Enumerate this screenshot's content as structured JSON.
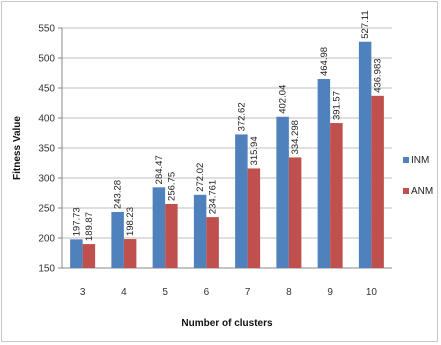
{
  "chart_data": {
    "type": "bar",
    "title": "",
    "xlabel": "Number of clusters",
    "ylabel": "Fitness Value",
    "categories": [
      "3",
      "4",
      "5",
      "6",
      "7",
      "8",
      "9",
      "10"
    ],
    "ylim": [
      150,
      550
    ],
    "yticks": [
      150,
      200,
      250,
      300,
      350,
      400,
      450,
      500,
      550
    ],
    "grid": true,
    "legend": "right",
    "series": [
      {
        "name": "INM",
        "color": "#4f81bd",
        "values": [
          197.73,
          243.28,
          284.47,
          272.02,
          372.62,
          402.04,
          464.98,
          527.11
        ],
        "labels": [
          "197.73",
          "243.28",
          "284.47",
          "272.02",
          "372.62",
          "402.04",
          "464.98",
          "527.11"
        ]
      },
      {
        "name": "ANM",
        "color": "#c0504d",
        "values": [
          189.87,
          198.23,
          256.75,
          234.761,
          315.94,
          334.298,
          391.57,
          436.983
        ],
        "labels": [
          "189.87",
          "198.23",
          "256.75",
          "234.761",
          "315.94",
          "334.298",
          "391.57",
          "436.983"
        ]
      }
    ]
  }
}
